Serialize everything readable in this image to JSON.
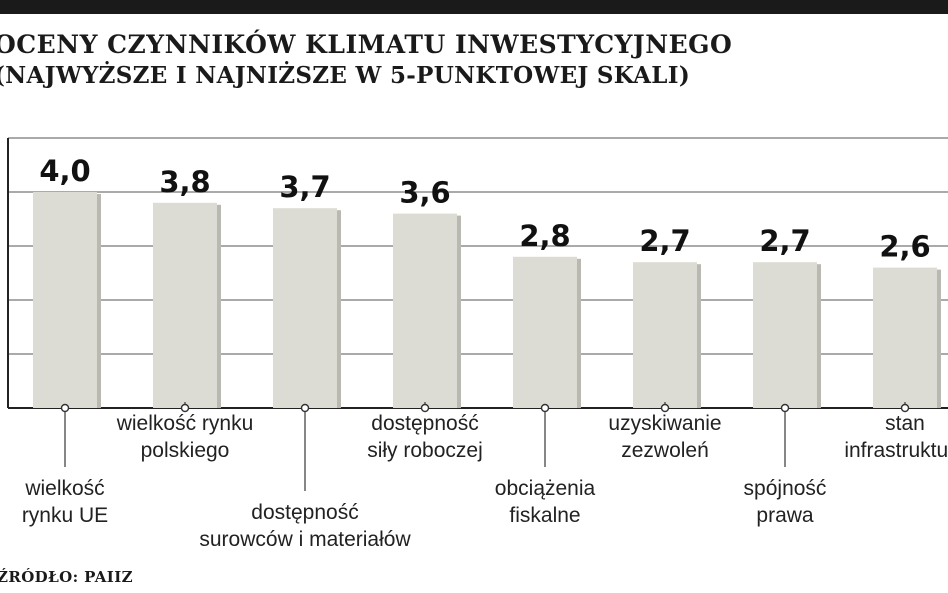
{
  "header": {
    "title": "OCENY CZYNNIKÓW KLIMATU INWESTYCYJNEGO",
    "subtitle": "(NAJWYŻSZE I NAJNIŻSZE W 5-PUNKTOWEJ SKALI)"
  },
  "source": "ŹRÓDŁO: PAIIZ",
  "colors": {
    "bar": "#dcdcd4",
    "bar_shadow": "#b9b9b1",
    "axis": "#222222",
    "grid": "#777777"
  },
  "chart_data": {
    "type": "bar",
    "title": "OCENY CZYNNIKÓW KLIMATU INWESTYCYJNEGO",
    "subtitle": "(NAJWYŻSZE I NAJNIŻSZE W 5-PUNKTOWEJ SKALI)",
    "xlabel": "",
    "ylabel": "",
    "ylim": [
      0,
      5
    ],
    "grid": true,
    "value_labels": [
      "4,0",
      "3,8",
      "3,7",
      "3,6",
      "2,8",
      "2,7",
      "2,7",
      "2,6"
    ],
    "categories": [
      [
        "wielkość",
        "rynku UE"
      ],
      [
        "wielkość rynku",
        "polskiego"
      ],
      [
        "dostępność",
        "surowców i materiałów"
      ],
      [
        "dostępność",
        "siły roboczej"
      ],
      [
        "obciążenia",
        "fiskalne"
      ],
      [
        "uzyskiwanie",
        "zezwoleń"
      ],
      [
        "spójność",
        "prawa"
      ],
      [
        "stan",
        "infrastruktury"
      ]
    ],
    "values": [
      4.0,
      3.8,
      3.7,
      3.6,
      2.8,
      2.7,
      2.7,
      2.6
    ]
  }
}
